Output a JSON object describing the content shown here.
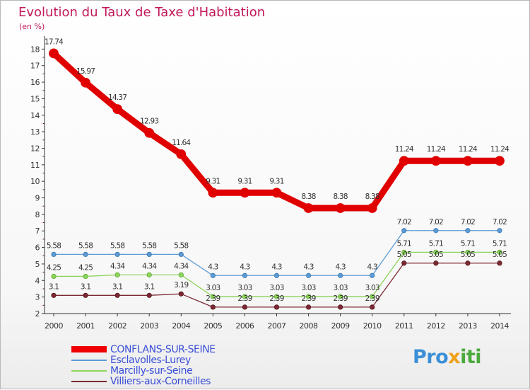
{
  "chart_data": {
    "type": "line",
    "title": "Evolution du Taux de Taxe d'Habitation",
    "subtitle": "(en %)",
    "x": [
      "2000",
      "2001",
      "2002",
      "2003",
      "2004",
      "2005",
      "2006",
      "2007",
      "2008",
      "2009",
      "2010",
      "2011",
      "2012",
      "2013",
      "2014"
    ],
    "y_ticks": [
      2,
      3,
      4,
      5,
      6,
      7,
      8,
      9,
      10,
      11,
      12,
      13,
      14,
      15,
      16,
      17,
      18
    ],
    "ylim": [
      2,
      18.7
    ],
    "grid": false,
    "legend_position": "bottom-left",
    "series": [
      {
        "name": "CONFLANS-SUR-SEINE",
        "color": "#ee0000",
        "values": [
          17.74,
          15.97,
          14.37,
          12.93,
          11.64,
          9.31,
          9.31,
          9.31,
          8.38,
          8.38,
          8.38,
          11.24,
          11.24,
          11.24,
          11.24
        ],
        "labels": [
          "17.74",
          "15.97",
          "14.37",
          "12.93",
          "11.64",
          "9.31",
          "9.31",
          "9.31",
          "8.38",
          "8.38",
          "8.38",
          "11.24",
          "11.24",
          "11.24",
          "11.24"
        ]
      },
      {
        "name": "Esclavolles-Lurey",
        "color": "#5b9bd5",
        "values": [
          5.58,
          5.58,
          5.58,
          5.58,
          5.58,
          4.3,
          4.3,
          4.3,
          4.3,
          4.3,
          4.3,
          7.02,
          7.02,
          7.02,
          7.02
        ],
        "labels": [
          "5.58",
          "5.58",
          "5.58",
          "5.58",
          "5.58",
          "4.3",
          "4.3",
          "4.3",
          "4.3",
          "4.3",
          "4.3",
          "7.02",
          "7.02",
          "7.02",
          "7.02"
        ]
      },
      {
        "name": "Marcilly-sur-Seine",
        "color": "#8cd45a",
        "values": [
          4.25,
          4.25,
          4.34,
          4.34,
          4.34,
          3.03,
          3.03,
          3.03,
          3.03,
          3.03,
          3.03,
          5.71,
          5.71,
          5.71,
          5.71
        ],
        "labels": [
          "4.25",
          "4.25",
          "4.34",
          "4.34",
          "4.34",
          "3.03",
          "3.03",
          "3.03",
          "3.03",
          "3.03",
          "3.03",
          "5.71",
          "5.71",
          "5.71",
          "5.71"
        ]
      },
      {
        "name": "Villiers-aux-Corneilles",
        "color": "#7b2a33",
        "values": [
          3.1,
          3.1,
          3.1,
          3.1,
          3.19,
          2.39,
          2.39,
          2.39,
          2.39,
          2.39,
          2.39,
          5.05,
          5.05,
          5.05,
          5.05
        ],
        "labels": [
          "3.1",
          "3.1",
          "3.1",
          "3.1",
          "3.19",
          "2.39",
          "2.39",
          "2.39",
          "2.39",
          "2.39",
          "2.39",
          "5.05",
          "5.05",
          "5.05",
          "5.05"
        ]
      }
    ]
  },
  "logo": {
    "part1": "Pro",
    "part2": "x",
    "part3": "iti"
  }
}
